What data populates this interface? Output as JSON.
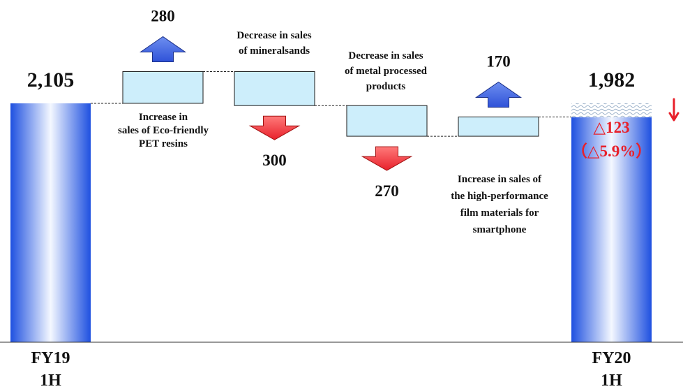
{
  "chart_data": {
    "type": "waterfall",
    "title": "",
    "xlabel": "",
    "ylabel": "",
    "totals": [
      {
        "category_lines": [
          "FY19",
          "1H"
        ],
        "value": 2105,
        "value_label": "2,105"
      },
      {
        "category_lines": [
          "FY20",
          "1H"
        ],
        "value": 1982,
        "value_label": "1,982"
      }
    ],
    "changes": [
      {
        "direction": "up",
        "value": 280,
        "value_label": "280",
        "description_lines": [
          "Increase in",
          "sales of Eco-friendly",
          "PET resins"
        ]
      },
      {
        "direction": "down",
        "value": 300,
        "value_label": "300",
        "description_lines": [
          "Decrease in sales",
          "of  mineralsands"
        ]
      },
      {
        "direction": "down",
        "value": 270,
        "value_label": "270",
        "description_lines": [
          "Decrease in sales",
          "of  metal processed",
          "products"
        ]
      },
      {
        "direction": "up",
        "value": 170,
        "value_label": "170",
        "description_lines": [
          "Increase in sales of",
          "the high-performance",
          "film materials for",
          "smartphone"
        ]
      }
    ],
    "net_change": {
      "value": -123,
      "percent": -5.9,
      "label_lines": [
        "△123",
        "（△5.9%）"
      ]
    },
    "colors": {
      "bar_edge": "#1e50e0",
      "bar_center": "#f4f8ff",
      "step_fill": "#cdeefb",
      "step_border": "#1a1a1a",
      "up_arrow": "#2f52d8",
      "down_arrow": "#e8202a",
      "net_text": "#e8202a"
    },
    "icons": {
      "up": "up-arrow-icon",
      "down": "down-arrow-icon",
      "net": "red-down-arrow-icon"
    }
  }
}
